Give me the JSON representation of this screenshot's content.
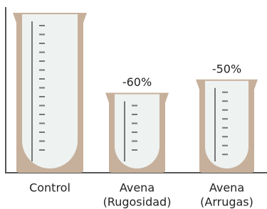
{
  "chart_data": {
    "type": "beaker",
    "categories": [
      [
        "Control"
      ],
      [
        "Avena",
        "(Rugosidad)"
      ],
      [
        "Avena",
        "(Arrugas)"
      ]
    ],
    "values": [
      0,
      -60,
      -50
    ],
    "value_labels": [
      null,
      "-60%",
      "-50%"
    ],
    "ylim": [
      -120,
      0
    ],
    "color": "#c7b09b"
  }
}
